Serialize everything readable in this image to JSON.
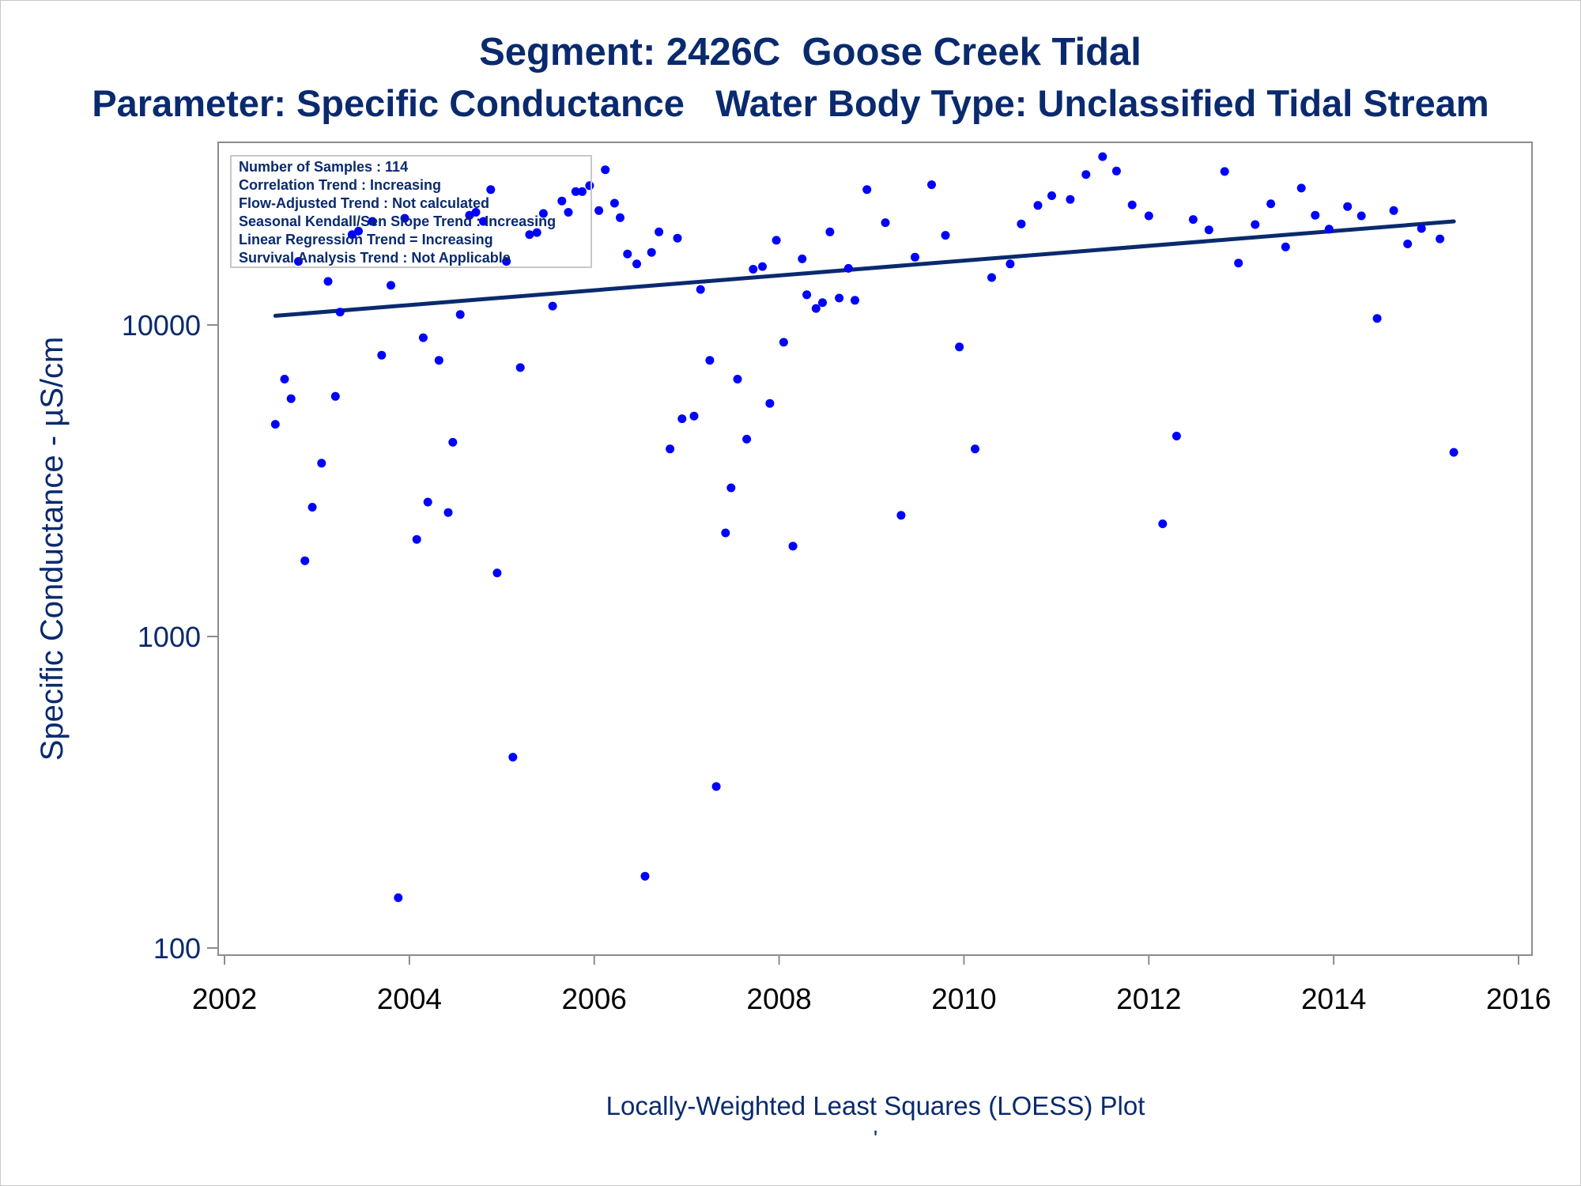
{
  "titles": {
    "line1": "Segment: 2426C  Goose Creek Tidal",
    "line2": "Parameter: Specific Conductance   Water Body Type: Unclassified Tidal Stream"
  },
  "footnote": "Locally-Weighted Least Squares (LOESS) Plot",
  "footnote_mark": "'",
  "colors": {
    "title": "#0a2a6e",
    "points": "#0000ff",
    "trend_line": "#0a2a6e",
    "axis_frame": "#8c8c8c",
    "tick_labels": "#0a2a6e"
  },
  "chart_data": {
    "type": "scatter",
    "ylabel": "Specific Conductance -  µS/cm",
    "xlabel": "",
    "yscale": "log",
    "xlim": [
      2002,
      2016
    ],
    "ylim": [
      100,
      40000
    ],
    "x_ticks": [
      2002,
      2004,
      2006,
      2008,
      2010,
      2012,
      2014,
      2016
    ],
    "x_tick_labels": [
      "2002",
      "2004",
      "2006",
      "2008",
      "2010",
      "2012",
      "2014",
      "2016"
    ],
    "y_ticks": [
      100,
      1000,
      10000
    ],
    "y_tick_labels": [
      "100",
      "1000",
      "10000"
    ],
    "grid": false,
    "legend": "none",
    "stats_box": {
      "placement": "top-left",
      "lines": [
        "Number of Samples : 114",
        "Correlation Trend : Increasing",
        "Flow-Adjusted Trend : Not calculated",
        "Seasonal Kendall/Sen Slope Trend : Increasing",
        "Linear Regression Trend = Increasing",
        "Survival Analysis Trend : Not Applicable"
      ]
    },
    "trend_line": {
      "x": [
        2002.55,
        2015.3
      ],
      "y": [
        10700,
        21500
      ]
    },
    "points": [
      [
        2002.55,
        4800
      ],
      [
        2002.65,
        6700
      ],
      [
        2002.72,
        5800
      ],
      [
        2002.8,
        16000
      ],
      [
        2002.87,
        1750
      ],
      [
        2002.95,
        2600
      ],
      [
        2003.05,
        3600
      ],
      [
        2003.12,
        13800
      ],
      [
        2003.2,
        5900
      ],
      [
        2003.25,
        11000
      ],
      [
        2003.38,
        19500
      ],
      [
        2003.45,
        20000
      ],
      [
        2003.6,
        21500
      ],
      [
        2003.7,
        8000
      ],
      [
        2003.8,
        13400
      ],
      [
        2003.88,
        145
      ],
      [
        2003.95,
        22000
      ],
      [
        2004.08,
        2050
      ],
      [
        2004.15,
        9100
      ],
      [
        2004.2,
        2700
      ],
      [
        2004.32,
        7700
      ],
      [
        2004.42,
        2500
      ],
      [
        2004.47,
        4200
      ],
      [
        2004.55,
        10800
      ],
      [
        2004.65,
        22500
      ],
      [
        2004.72,
        23000
      ],
      [
        2004.8,
        21500
      ],
      [
        2004.88,
        27200
      ],
      [
        2004.95,
        1600
      ],
      [
        2005.05,
        16000
      ],
      [
        2005.12,
        410
      ],
      [
        2005.2,
        7300
      ],
      [
        2005.3,
        19500
      ],
      [
        2005.38,
        19800
      ],
      [
        2005.45,
        22800
      ],
      [
        2005.55,
        11500
      ],
      [
        2005.65,
        25000
      ],
      [
        2005.72,
        23000
      ],
      [
        2005.8,
        26800
      ],
      [
        2005.87,
        26800
      ],
      [
        2005.95,
        28000
      ],
      [
        2006.05,
        23300
      ],
      [
        2006.12,
        31500
      ],
      [
        2006.22,
        24600
      ],
      [
        2006.28,
        22100
      ],
      [
        2006.36,
        16900
      ],
      [
        2006.46,
        15700
      ],
      [
        2006.55,
        170
      ],
      [
        2006.62,
        17100
      ],
      [
        2006.7,
        19900
      ],
      [
        2006.82,
        4000
      ],
      [
        2006.9,
        19000
      ],
      [
        2006.95,
        5000
      ],
      [
        2007.08,
        5100
      ],
      [
        2007.15,
        13000
      ],
      [
        2007.25,
        7700
      ],
      [
        2007.32,
        330
      ],
      [
        2007.42,
        2150
      ],
      [
        2007.48,
        3000
      ],
      [
        2007.55,
        6700
      ],
      [
        2007.65,
        4300
      ],
      [
        2007.72,
        15100
      ],
      [
        2007.82,
        15400
      ],
      [
        2007.9,
        5600
      ],
      [
        2007.97,
        18700
      ],
      [
        2008.05,
        8800
      ],
      [
        2008.15,
        1950
      ],
      [
        2008.25,
        16300
      ],
      [
        2008.3,
        12500
      ],
      [
        2008.4,
        11300
      ],
      [
        2008.47,
        11800
      ],
      [
        2008.55,
        19900
      ],
      [
        2008.65,
        12200
      ],
      [
        2008.75,
        15200
      ],
      [
        2008.82,
        12000
      ],
      [
        2008.95,
        27200
      ],
      [
        2009.15,
        21300
      ],
      [
        2009.32,
        2450
      ],
      [
        2009.47,
        16500
      ],
      [
        2009.65,
        28200
      ],
      [
        2009.8,
        19400
      ],
      [
        2009.95,
        8500
      ],
      [
        2010.12,
        4000
      ],
      [
        2010.3,
        14200
      ],
      [
        2010.5,
        15700
      ],
      [
        2010.62,
        21100
      ],
      [
        2010.8,
        24200
      ],
      [
        2010.95,
        26000
      ],
      [
        2011.15,
        25300
      ],
      [
        2011.32,
        30400
      ],
      [
        2011.5,
        34700
      ],
      [
        2011.65,
        31200
      ],
      [
        2011.82,
        24300
      ],
      [
        2012.0,
        22400
      ],
      [
        2012.15,
        2300
      ],
      [
        2012.3,
        4400
      ],
      [
        2012.48,
        21800
      ],
      [
        2012.65,
        20200
      ],
      [
        2012.82,
        31100
      ],
      [
        2012.97,
        15800
      ],
      [
        2013.15,
        21000
      ],
      [
        2013.32,
        24500
      ],
      [
        2013.48,
        17800
      ],
      [
        2013.65,
        27500
      ],
      [
        2013.8,
        22500
      ],
      [
        2013.95,
        20300
      ],
      [
        2014.15,
        24000
      ],
      [
        2014.3,
        22400
      ],
      [
        2014.47,
        10500
      ],
      [
        2014.65,
        23300
      ],
      [
        2014.8,
        18200
      ],
      [
        2014.95,
        20400
      ],
      [
        2015.15,
        18900
      ],
      [
        2015.3,
        3900
      ]
    ]
  }
}
